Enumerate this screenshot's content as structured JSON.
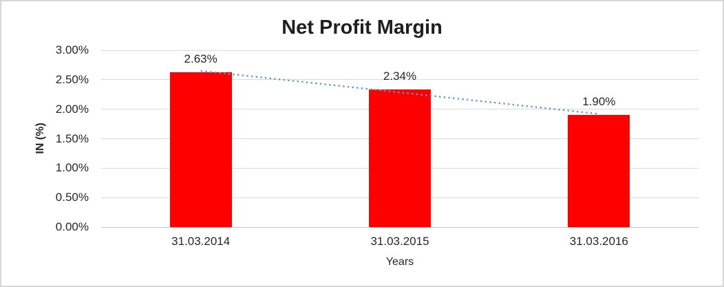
{
  "chart_data": {
    "type": "bar",
    "title": "Net Profit Margin",
    "xlabel": "Years",
    "ylabel": "IN (%)",
    "categories": [
      "31.03.2014",
      "31.03.2015",
      "31.03.2016"
    ],
    "values": [
      2.63,
      2.34,
      1.9
    ],
    "value_labels": [
      "2.63%",
      "2.34%",
      "1.90%"
    ],
    "ylim": [
      0,
      3.0
    ],
    "ytick_step": 0.5,
    "ytick_labels": [
      "0.00%",
      "0.50%",
      "1.00%",
      "1.50%",
      "2.00%",
      "2.50%",
      "3.00%"
    ],
    "grid": true,
    "legend": "none",
    "bar_color": "#ff0000",
    "gridline_color": "#d9d9d9",
    "axis_line_color": "#c6c6c6",
    "text_color": "#262626",
    "border_color": "#d6d6d6",
    "background_color": "#ffffff",
    "trendline": {
      "type": "linear",
      "style": "dotted",
      "color": "#5b9bd5",
      "start_value": 2.65,
      "end_value": 1.92
    }
  }
}
